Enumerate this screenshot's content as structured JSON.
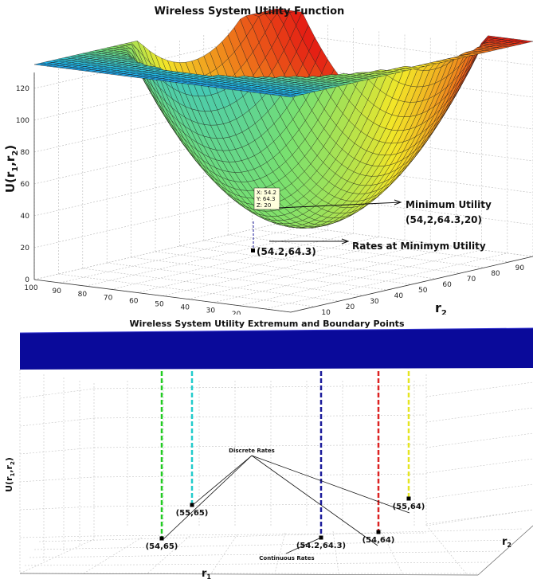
{
  "chart_data": [
    {
      "type": "surface",
      "title": "Wireless System Utility Function",
      "xlabel": "r",
      "xlabel_sub": "1",
      "ylabel": "r",
      "ylabel_sub": "2",
      "zlabel": "U(r",
      "zlabel_sub1": "1",
      "zlabel_mid": ",r",
      "zlabel_sub2": "2",
      "zlabel_end": ")",
      "x_ticks": [
        "100",
        "90",
        "80",
        "70",
        "60",
        "50",
        "40",
        "30",
        "20"
      ],
      "y_ticks": [
        "10",
        "20",
        "30",
        "40",
        "50",
        "60",
        "70",
        "80",
        "90"
      ],
      "z_ticks": [
        "0",
        "20",
        "40",
        "60",
        "80",
        "100",
        "120"
      ],
      "zlim": [
        0,
        130
      ],
      "grid": true,
      "colormap": [
        "#1a3fd0",
        "#21b8e6",
        "#78e070",
        "#f2e628",
        "#f08a1c",
        "#e41a14"
      ],
      "minimum_point": {
        "x": 54.2,
        "y": 64.3,
        "z": 20
      },
      "datatip": {
        "x_text": "X: 54.2",
        "y_text": "Y: 64.3",
        "z_text": "Z: 20"
      },
      "annotations": {
        "minimum_label_1": "Minimum Utility",
        "minimum_label_2": "(54,2,64.3,20)",
        "rates_label": "Rates at Minimym Utility",
        "rates_point_label": "(54.2,64.3)"
      }
    },
    {
      "type": "surface",
      "title": "Wireless System Utility Extremum and Boundary Points",
      "xlabel": "r",
      "xlabel_sub": "1",
      "ylabel": "r",
      "ylabel_sub": "2",
      "zlabel": "U(r",
      "zlabel_sub1": "1",
      "zlabel_mid": ",r",
      "zlabel_sub2": "2",
      "zlabel_end": ")",
      "grid": true,
      "points": [
        {
          "label": "(54,65)",
          "r1": 54,
          "r2": 65,
          "color": "#22cc22",
          "kind": "discrete"
        },
        {
          "label": "(55,65)",
          "r1": 55,
          "r2": 65,
          "color": "#22cccc",
          "kind": "discrete"
        },
        {
          "label": "(54.2,64.3)",
          "r1": 54.2,
          "r2": 64.3,
          "color": "#1a1a9a",
          "kind": "continuous"
        },
        {
          "label": "(54,64)",
          "r1": 54,
          "r2": 64,
          "color": "#dd2222",
          "kind": "discrete"
        },
        {
          "label": "(55,64)",
          "r1": 55,
          "r2": 64,
          "color": "#e6e622",
          "kind": "discrete"
        }
      ],
      "annotations": {
        "discrete_label": "Discrete Rates",
        "continuous_label": "Continuous Rates"
      },
      "surface_color": "#0a0a9a"
    }
  ]
}
